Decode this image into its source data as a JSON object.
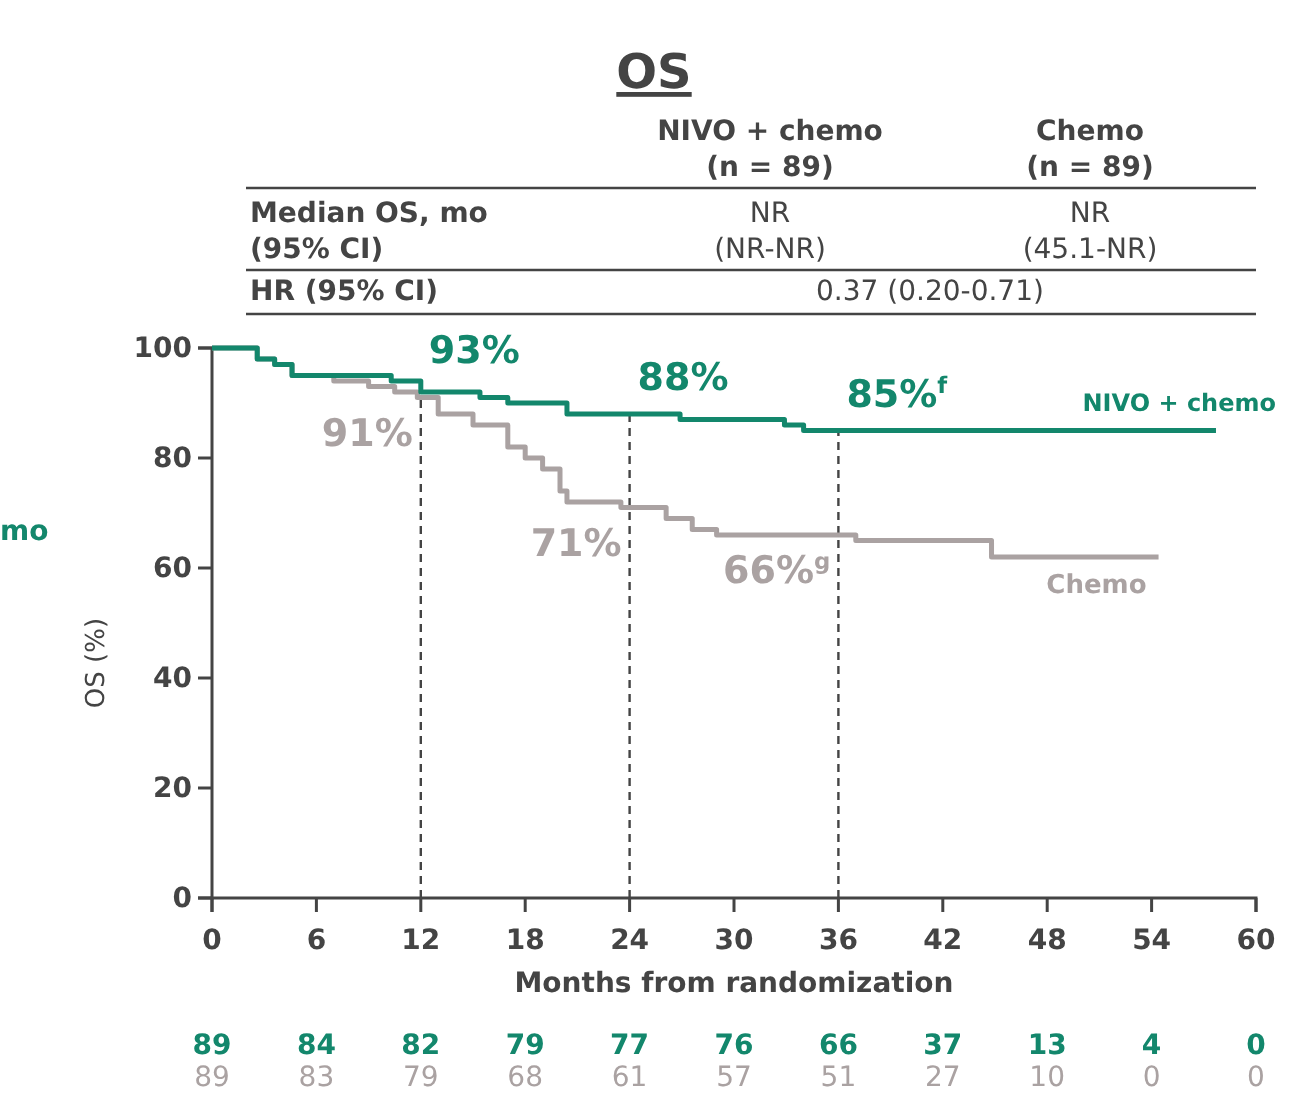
{
  "chart_data": {
    "type": "step",
    "title": "OS",
    "xlabel": "Months from randomization",
    "ylabel": "OS (%)",
    "xlim": [
      0,
      60
    ],
    "ylim": [
      0,
      100
    ],
    "xticks": [
      0,
      6,
      12,
      18,
      24,
      30,
      36,
      42,
      48,
      54,
      60
    ],
    "yticks": [
      0,
      20,
      40,
      60,
      80,
      100
    ],
    "grid": false,
    "line_style": "solid",
    "marker": "none",
    "series": [
      {
        "name": "NIVO + chemo",
        "color": "#13876c",
        "x": [
          0,
          2.6,
          3.6,
          4.6,
          10.3,
          12,
          15.4,
          17,
          20.4,
          26.9,
          32.9,
          34,
          57.7
        ],
        "values": [
          100,
          98,
          97,
          95,
          94,
          92,
          91,
          90,
          88,
          87,
          86,
          85,
          85
        ]
      },
      {
        "name": "Chemo",
        "color": "#aaa2a2",
        "x": [
          0,
          2.6,
          3.6,
          4.6,
          7,
          9,
          10.5,
          11.8,
          13,
          15,
          17,
          18,
          19,
          20,
          20.4,
          23.5,
          26.1,
          27.6,
          29,
          37,
          44.8,
          54.4
        ],
        "values": [
          100,
          98,
          97,
          95,
          94,
          93,
          92,
          91,
          88,
          86,
          82,
          80,
          78,
          74,
          72,
          71,
          69,
          67,
          66,
          65,
          62,
          62
        ]
      }
    ],
    "ref_lines": [
      {
        "axis": "x",
        "value": 12,
        "label": null,
        "line_style": "dashed"
      },
      {
        "axis": "x",
        "value": 24,
        "label": null,
        "line_style": "dashed"
      },
      {
        "axis": "x",
        "value": 36,
        "label": null,
        "line_style": "dashed"
      }
    ],
    "annotations": [
      "NIVO + chemo",
      "(n = 89)",
      "Chemo",
      "(n = 89)",
      "Median OS, mo",
      "(95% CI)",
      "NR",
      "(NR-NR)",
      "NR",
      "(45.1-NR)",
      "HR (95% CI)",
      "0.37 (0.20-0.71)",
      "mo",
      "89",
      "84",
      "82",
      "79",
      "77",
      "76",
      "66",
      "37",
      "13",
      "4",
      "0",
      "89",
      "83",
      "79",
      "68",
      "61",
      "57",
      "51",
      "27",
      "10",
      "0",
      "0",
      {
        "text": "93%",
        "x": 12,
        "y": 93
      },
      {
        "text": "91%",
        "x": 12,
        "y": 91
      },
      {
        "text": "88%",
        "x": 24,
        "y": 88
      },
      {
        "text": "71%",
        "x": 24,
        "y": 71
      },
      {
        "text": "85%$^{f}$",
        "x": 36,
        "y": 85
      },
      {
        "text": "66%$^{g}$",
        "x": 36,
        "y": 66
      }
    ]
  }
}
